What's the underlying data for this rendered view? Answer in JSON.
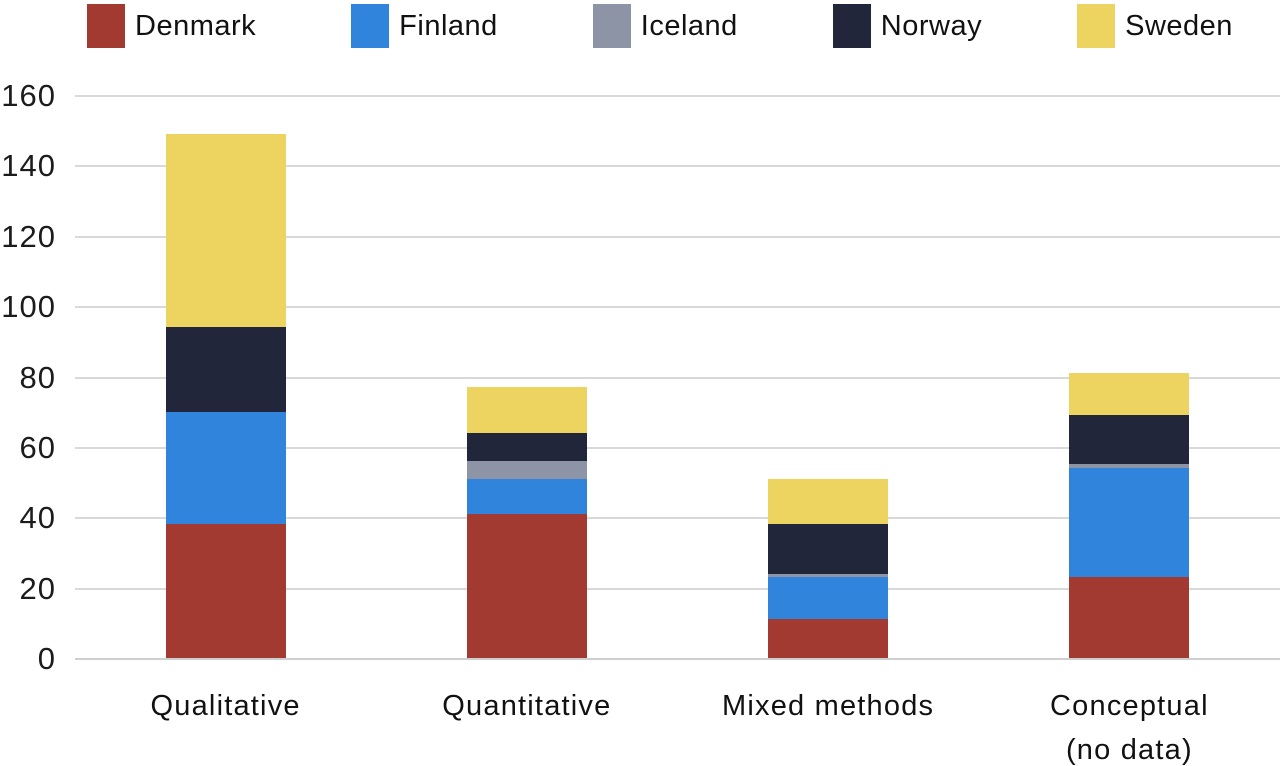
{
  "chart_data": {
    "type": "bar",
    "stacked": true,
    "title": "",
    "xlabel": "",
    "ylabel": "",
    "categories": [
      "Qualitative",
      "Quantitative",
      "Mixed methods",
      "Conceptual (no data)"
    ],
    "category_lines": [
      [
        "Qualitative"
      ],
      [
        "Quantitative"
      ],
      [
        "Mixed methods"
      ],
      [
        "Conceptual",
        "(no data)"
      ]
    ],
    "series": [
      {
        "name": "Denmark",
        "color": "#A23A31",
        "values": [
          38,
          41,
          11,
          23
        ]
      },
      {
        "name": "Finland",
        "color": "#3184DB",
        "values": [
          32,
          10,
          12,
          31
        ]
      },
      {
        "name": "Iceland",
        "color": "#8D94A5",
        "values": [
          0,
          5,
          1,
          1
        ]
      },
      {
        "name": "Norway",
        "color": "#22263A",
        "values": [
          24,
          8,
          14,
          14
        ]
      },
      {
        "name": "Sweden",
        "color": "#EDD461",
        "values": [
          55,
          13,
          13,
          12
        ]
      }
    ],
    "stack_totals": [
      149,
      77,
      51,
      81
    ],
    "ylim": [
      0,
      160
    ],
    "yticks": [
      0,
      20,
      40,
      60,
      80,
      100,
      120,
      140,
      160
    ],
    "grid": true,
    "legend_position": "top"
  },
  "colors": {
    "background": "#ffffff",
    "grid": "#d9d9d9",
    "text": "#1a1a1a"
  }
}
